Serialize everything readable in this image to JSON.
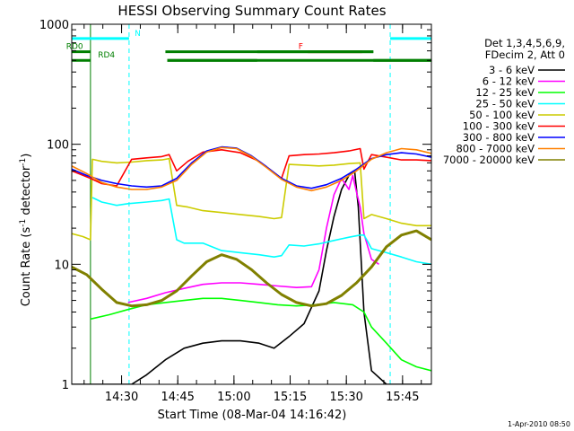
{
  "chart_data": {
    "type": "line",
    "title": "HESSI Observing Summary Count Rates",
    "xlabel": "Start Time (08-Mar-04 14:16:42)",
    "ylabel_main": "Count Rate (s",
    "ylabel_sup1": "-1",
    "ylabel_mid": " detector",
    "ylabel_sup2": "-1",
    "ylabel_end": ")",
    "y_scale": "log",
    "ylim": [
      1,
      1000
    ],
    "xlim_minutes": [
      0,
      96
    ],
    "y_ticks": [
      {
        "value": 1,
        "label": "1"
      },
      {
        "value": 10,
        "label": "10"
      },
      {
        "value": 100,
        "label": "100"
      },
      {
        "value": 1000,
        "label": "1000"
      }
    ],
    "x_ticks": [
      {
        "minutes": 13.3,
        "label": "14:30"
      },
      {
        "minutes": 28.3,
        "label": "14:45"
      },
      {
        "minutes": 43.3,
        "label": "15:00"
      },
      {
        "minutes": 58.3,
        "label": "15:15"
      },
      {
        "minutes": 73.3,
        "label": "15:30"
      },
      {
        "minutes": 88.3,
        "label": "15:45"
      }
    ],
    "legend": {
      "placement": "right",
      "header": [
        "Det 1,3,4,5,6,9,",
        "FDecim 2, Att 0"
      ]
    },
    "series": [
      {
        "name": "3 - 6 keV",
        "color": "#000000",
        "x": [
          0,
          8,
          16,
          20,
          25,
          30,
          35,
          40,
          45,
          50,
          54,
          58,
          62,
          66,
          68,
          70,
          72,
          74,
          75.5,
          76.5,
          78,
          80,
          84,
          88,
          92,
          96
        ],
        "y": [
          1,
          1,
          1,
          1.2,
          1.6,
          2.0,
          2.2,
          2.3,
          2.3,
          2.2,
          2.0,
          2.5,
          3.2,
          6,
          13,
          25,
          42,
          55,
          60,
          30,
          4,
          1.3,
          1,
          1,
          1,
          1
        ]
      },
      {
        "name": "6 - 12 keV",
        "color": "#ff00ff",
        "x": [
          15,
          20,
          25,
          30,
          35,
          40,
          45,
          50,
          55,
          60,
          64,
          66,
          68,
          70,
          72,
          74,
          75,
          76,
          77,
          78,
          80,
          82
        ],
        "y": [
          4.8,
          5.2,
          5.8,
          6.3,
          6.8,
          7.0,
          7.0,
          6.8,
          6.6,
          6.4,
          6.5,
          9,
          20,
          38,
          52,
          42,
          55,
          40,
          30,
          18,
          11,
          10
        ]
      },
      {
        "name": "12 - 25 keV",
        "color": "#00ff00",
        "x": [
          5,
          10,
          15,
          20,
          25,
          30,
          35,
          40,
          45,
          50,
          55,
          60,
          65,
          70,
          75,
          78,
          80,
          84,
          88,
          92,
          96
        ],
        "y": [
          3.5,
          3.8,
          4.2,
          4.6,
          4.8,
          5.0,
          5.2,
          5.2,
          5.0,
          4.8,
          4.6,
          4.5,
          4.6,
          4.8,
          4.6,
          4.0,
          3.0,
          2.2,
          1.6,
          1.4,
          1.3
        ]
      },
      {
        "name": "25 - 50 keV",
        "color": "#00ffff",
        "x": [
          5.5,
          8,
          12,
          15,
          20,
          24,
          26,
          28,
          30,
          35,
          40,
          45,
          50,
          54,
          56,
          58,
          62,
          66,
          70,
          74,
          77,
          78,
          79,
          80,
          84,
          88,
          92,
          96
        ],
        "y": [
          36,
          33,
          31,
          32,
          33,
          34,
          35,
          16,
          15,
          15,
          13,
          12.5,
          12,
          11.5,
          11.8,
          14.5,
          14.2,
          14.8,
          15.8,
          16.8,
          17.5,
          17.5,
          15.5,
          13.5,
          12.5,
          11.5,
          10.5,
          10
        ]
      },
      {
        "name": "50 - 100 keV",
        "color": "#cccc00",
        "x": [
          0,
          3,
          5,
          5.5,
          8,
          12,
          16,
          20,
          24,
          26,
          28,
          31,
          35,
          40,
          45,
          50,
          54,
          56,
          58,
          62,
          66,
          70,
          74,
          77,
          78,
          80,
          84,
          88,
          92,
          96
        ],
        "y": [
          18,
          17,
          16,
          75,
          72,
          70,
          71,
          73,
          74,
          76,
          31,
          30,
          28,
          27,
          26,
          25,
          24,
          24.5,
          68,
          67,
          66,
          67,
          69,
          70,
          24,
          26,
          24,
          22,
          21,
          21
        ]
      },
      {
        "name": "100 - 300 keV",
        "color": "#ff0000",
        "x": [
          0,
          5,
          8,
          12,
          16,
          20,
          24,
          26,
          28,
          31,
          35,
          40,
          45,
          50,
          54,
          56,
          58,
          62,
          66,
          70,
          74,
          77,
          78,
          80,
          84,
          88,
          92,
          96
        ],
        "y": [
          60,
          52,
          47,
          45,
          75,
          77,
          79,
          82,
          60,
          72,
          86,
          90,
          85,
          72,
          58,
          52,
          80,
          82,
          83,
          85,
          88,
          92,
          62,
          82,
          78,
          74,
          74,
          73
        ]
      },
      {
        "name": "300 - 800 keV",
        "color": "#0000ff",
        "x": [
          0,
          4,
          8,
          12,
          16,
          20,
          24,
          28,
          32,
          36,
          40,
          44,
          48,
          52,
          56,
          60,
          64,
          68,
          72,
          76,
          80,
          84,
          88,
          92,
          96
        ],
        "y": [
          62,
          55,
          50,
          47,
          45,
          44,
          45,
          52,
          70,
          88,
          95,
          93,
          80,
          65,
          52,
          45,
          43,
          46,
          52,
          62,
          76,
          82,
          85,
          83,
          78
        ]
      },
      {
        "name": "800 - 7000 keV",
        "color": "#ff8000",
        "x": [
          0,
          4,
          8,
          12,
          16,
          20,
          24,
          28,
          32,
          36,
          40,
          44,
          48,
          52,
          56,
          60,
          64,
          68,
          72,
          76,
          80,
          84,
          88,
          92,
          96
        ],
        "y": [
          66,
          57,
          48,
          44,
          42,
          42,
          44,
          50,
          68,
          86,
          94,
          92,
          79,
          64,
          51,
          44,
          41,
          44,
          50,
          60,
          75,
          85,
          92,
          90,
          84
        ]
      },
      {
        "name": "7000 - 20000 keV",
        "color": "#808000",
        "x": [
          0,
          4,
          8,
          12,
          16,
          20,
          24,
          28,
          32,
          36,
          40,
          44,
          48,
          52,
          56,
          60,
          64,
          68,
          72,
          76,
          80,
          84,
          88,
          92,
          96
        ],
        "y": [
          9.5,
          8.2,
          6.2,
          4.8,
          4.5,
          4.6,
          5.0,
          6.0,
          8.0,
          10.5,
          12,
          11,
          9,
          7,
          5.6,
          4.8,
          4.5,
          4.7,
          5.5,
          7,
          9.5,
          14,
          17.5,
          19,
          16
        ]
      }
    ],
    "state_bars": [
      {
        "label": "N",
        "color": "#00ffff",
        "y_value": 760,
        "segments": [
          [
            0,
            15.3
          ],
          [
            85,
            96
          ]
        ],
        "label_minutes": 16.8,
        "vlines": [
          15.3,
          85
        ]
      },
      {
        "label": "F",
        "color": "#ff0000",
        "y_value": 590,
        "segments": [
          [
            63,
            77.5
          ]
        ],
        "label_minutes": 60.5,
        "vlines": []
      },
      {
        "label": "RD0",
        "color": "#007f00",
        "y_value": 590,
        "segments": [
          [
            0,
            5
          ],
          [
            25,
            80.5
          ]
        ],
        "label_minutes": -1.5,
        "vlines": [
          5
        ]
      },
      {
        "label": "RD4",
        "color": "#007f00",
        "y_value": 500,
        "segments": [
          [
            0,
            5
          ],
          [
            25.5,
            96
          ]
        ],
        "label_minutes": 7,
        "vlines": []
      },
      {
        "label": "",
        "color": "#007f00",
        "y_value": 590,
        "segments": [
          [
            49.5,
            80.5
          ]
        ],
        "label_minutes": 0,
        "vlines": []
      },
      {
        "label": "",
        "color": "#007f00",
        "y_value": 500,
        "segments": [
          [
            25.5,
            49.5
          ],
          [
            80.5,
            96
          ]
        ],
        "label_minutes": 0,
        "vlines": []
      }
    ],
    "footer_date": "1-Apr-2010 08:50"
  }
}
